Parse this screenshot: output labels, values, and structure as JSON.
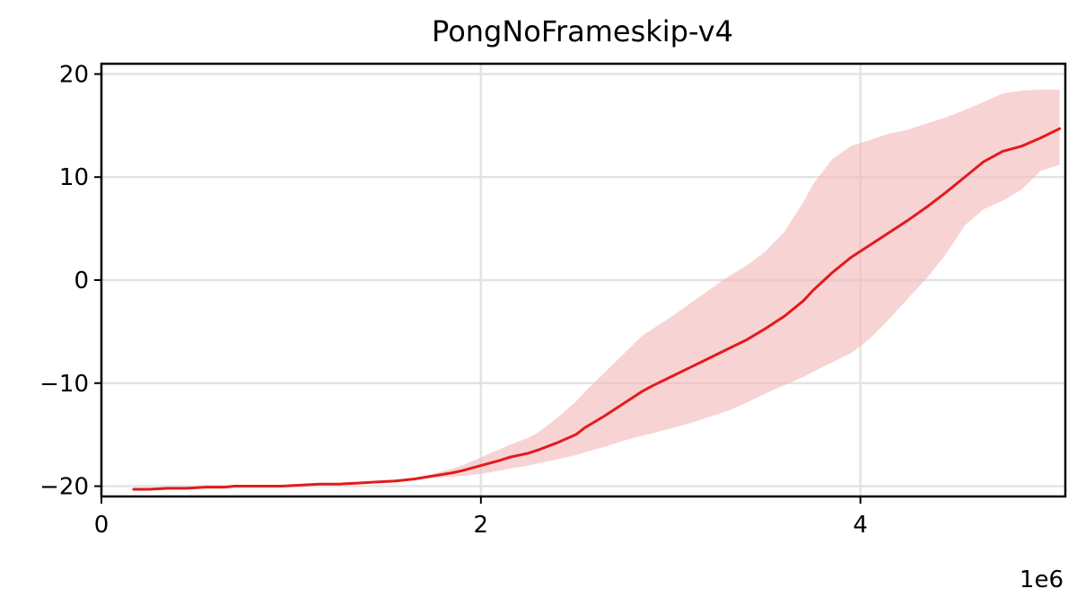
{
  "chart_data": {
    "type": "line",
    "title": "PongNoFrameskip-v4",
    "xlabel": "",
    "ylabel": "",
    "x_scale_label": "1e6",
    "xlim": [
      0,
      5.08
    ],
    "ylim": [
      -21,
      21
    ],
    "grid": true,
    "x_ticks": [
      {
        "value": 0,
        "label": "0"
      },
      {
        "value": 2,
        "label": "2"
      },
      {
        "value": 4,
        "label": "4"
      }
    ],
    "y_ticks": [
      {
        "value": 20,
        "label": "20"
      },
      {
        "value": 10,
        "label": "10"
      },
      {
        "value": 0,
        "label": "0"
      },
      {
        "value": -10,
        "label": "−10"
      },
      {
        "value": -20,
        "label": "−20"
      }
    ],
    "series": [
      {
        "color": "#e31a1c",
        "band_color": "#f4b6b8",
        "x": [
          0.17,
          0.25,
          0.35,
          0.45,
          0.55,
          0.65,
          0.7,
          0.8,
          0.9,
          0.95,
          1.05,
          1.15,
          1.25,
          1.35,
          1.45,
          1.55,
          1.65,
          1.75,
          1.85,
          1.9,
          2.0,
          2.1,
          2.15,
          2.25,
          2.3,
          2.4,
          2.5,
          2.55,
          2.65,
          2.75,
          2.85,
          2.9,
          3.0,
          3.1,
          3.2,
          3.3,
          3.4,
          3.5,
          3.6,
          3.7,
          3.75,
          3.85,
          3.95,
          4.05,
          4.15,
          4.25,
          4.35,
          4.45,
          4.55,
          4.65,
          4.75,
          4.85,
          4.95,
          5.05
        ],
        "y": [
          -20.3,
          -20.3,
          -20.2,
          -20.2,
          -20.1,
          -20.1,
          -20.0,
          -20.0,
          -20.0,
          -20.0,
          -19.9,
          -19.8,
          -19.8,
          -19.7,
          -19.6,
          -19.5,
          -19.3,
          -19.0,
          -18.7,
          -18.5,
          -18.0,
          -17.5,
          -17.2,
          -16.8,
          -16.5,
          -15.8,
          -15.0,
          -14.3,
          -13.2,
          -12.0,
          -10.8,
          -10.3,
          -9.4,
          -8.5,
          -7.6,
          -6.7,
          -5.8,
          -4.7,
          -3.5,
          -2.0,
          -1.0,
          0.7,
          2.2,
          3.4,
          4.6,
          5.8,
          7.1,
          8.5,
          10.0,
          11.5,
          12.5,
          13.0,
          13.8,
          14.7
        ],
        "lower": [
          -20.3,
          -20.3,
          -20.2,
          -20.2,
          -20.1,
          -20.1,
          -20.0,
          -20.0,
          -20.0,
          -20.0,
          -19.9,
          -19.8,
          -19.8,
          -19.7,
          -19.6,
          -19.5,
          -19.4,
          -19.2,
          -19.1,
          -19.0,
          -18.8,
          -18.5,
          -18.3,
          -18.0,
          -17.8,
          -17.4,
          -17.0,
          -16.7,
          -16.2,
          -15.6,
          -15.1,
          -14.9,
          -14.4,
          -13.9,
          -13.3,
          -12.7,
          -11.9,
          -11.0,
          -10.2,
          -9.4,
          -8.9,
          -8.0,
          -7.1,
          -5.7,
          -3.8,
          -1.8,
          0.2,
          2.5,
          5.3,
          6.9,
          7.7,
          8.8,
          10.6,
          11.2
        ],
        "upper": [
          -20.3,
          -20.3,
          -20.2,
          -20.2,
          -20.1,
          -20.1,
          -20.0,
          -20.0,
          -20.0,
          -20.0,
          -19.9,
          -19.8,
          -19.8,
          -19.7,
          -19.6,
          -19.5,
          -19.2,
          -18.8,
          -18.3,
          -18.0,
          -17.2,
          -16.4,
          -16.0,
          -15.3,
          -14.8,
          -13.4,
          -11.8,
          -10.8,
          -9.0,
          -7.2,
          -5.4,
          -4.8,
          -3.6,
          -2.3,
          -1.0,
          0.3,
          1.4,
          2.8,
          4.7,
          7.6,
          9.3,
          11.7,
          13.0,
          13.6,
          14.2,
          14.6,
          15.2,
          15.8,
          16.5,
          17.3,
          18.1,
          18.4,
          18.5,
          18.5
        ]
      }
    ]
  }
}
